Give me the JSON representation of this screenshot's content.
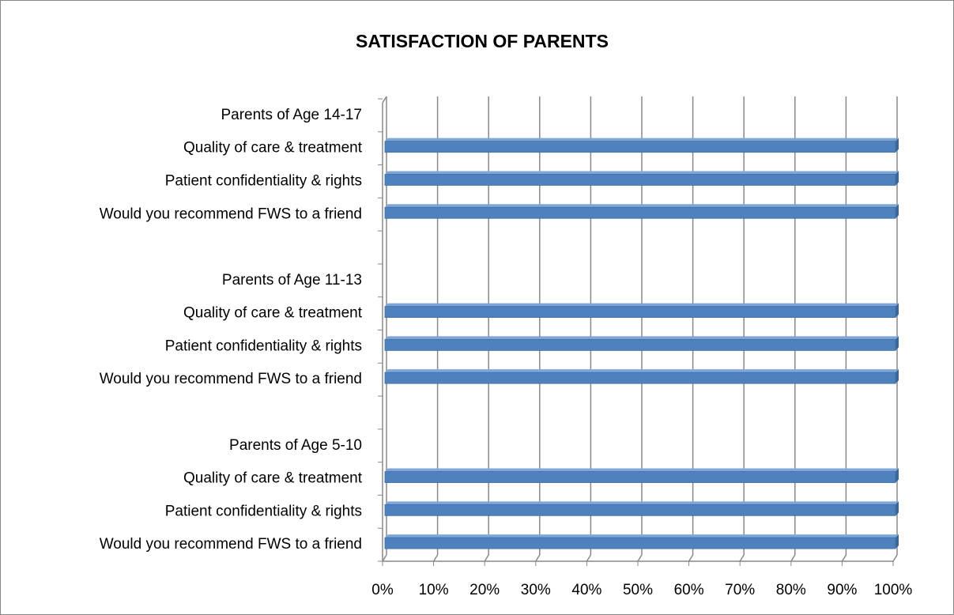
{
  "chart_data": {
    "type": "bar",
    "orientation": "horizontal",
    "title": "SATISFACTION OF PARENTS",
    "categories": [
      "Parents of Age 14-17",
      "Quality of care & treatment",
      "Patient confidentiality & rights",
      "Would you recommend FWS to a friend",
      null,
      "Parents of Age 11-13",
      "Quality of care & treatment",
      "Patient confidentiality & rights",
      "Would you recommend FWS to a friend",
      null,
      "Parents of Age 5-10",
      "Quality of care & treatment",
      "Patient confidentiality & rights",
      "Would you recommend FWS to a friend"
    ],
    "values": [
      null,
      100,
      100,
      100,
      null,
      null,
      100,
      100,
      100,
      null,
      null,
      100,
      100,
      100
    ],
    "color": "#4f81bd",
    "xlim": [
      0,
      100
    ],
    "xticks": [
      {
        "value": 0,
        "label": "0%"
      },
      {
        "value": 10,
        "label": "10%"
      },
      {
        "value": 20,
        "label": "20%"
      },
      {
        "value": 30,
        "label": "30%"
      },
      {
        "value": 40,
        "label": "40%"
      },
      {
        "value": 50,
        "label": "50%"
      },
      {
        "value": 60,
        "label": "60%"
      },
      {
        "value": 70,
        "label": "70%"
      },
      {
        "value": 80,
        "label": "80%"
      },
      {
        "value": 90,
        "label": "90%"
      },
      {
        "value": 100,
        "label": "100%"
      }
    ],
    "grid": true
  }
}
